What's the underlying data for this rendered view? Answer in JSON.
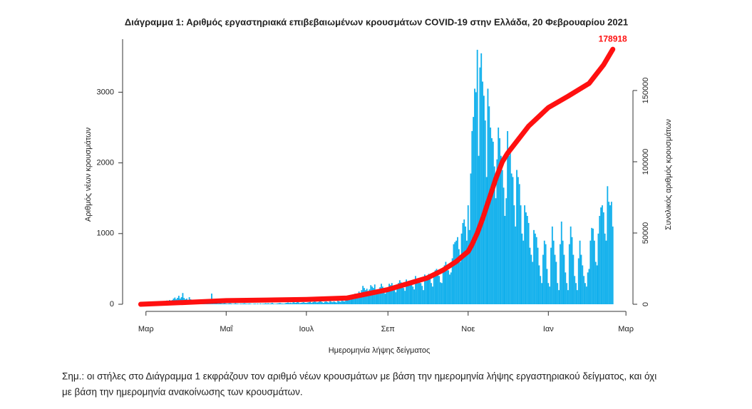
{
  "chart_data": {
    "type": "bar",
    "title": "Διάγραμμα 1: Αριθμός εργαστηριακά επιβεβαιωμένων κρουσμάτων COVID-19 στην Ελλάδα, 20 Φεβρουαρίου 2021",
    "y_label": "Αριθμός νέων κρουσμάτων",
    "y2_label": "Συνολικός αριθμός κρουσμάτων",
    "x_label": "Ημερομηνία λήψης δείγματος",
    "note": [
      "Σημ.: οι στήλες στο Διάγραμμα 1 εκφράζουν τον αριθμό νέων κρουσμάτων με βάση την ημερομηνία λήψης εργαστηριακού δείγματος, και όχι",
      "με βάση την ημερομηνία ανακοίνωσης των κρουσμάτων."
    ],
    "annotation": "178918",
    "xlim": [
      -4,
      370
    ],
    "xticks": [
      {
        "value": 4,
        "label": "Μαρ"
      },
      {
        "value": 65,
        "label": "Μαΐ"
      },
      {
        "value": 126,
        "label": "Ιουλ"
      },
      {
        "value": 188,
        "label": "Σεπ"
      },
      {
        "value": 249,
        "label": "Νοε"
      },
      {
        "value": 310,
        "label": "Ιαν"
      },
      {
        "value": 369,
        "label": "Μαρ"
      }
    ],
    "ylim": [
      0,
      3750
    ],
    "yticks": [
      0,
      1000,
      2000,
      3000
    ],
    "y2lim": [
      0,
      186000
    ],
    "y2ticks": [
      0,
      50000,
      100000,
      150000
    ],
    "series": [
      {
        "type": "bar",
        "color": "#12b0ec",
        "values": [
          1,
          1,
          1,
          3,
          3,
          2,
          0,
          2,
          8,
          10,
          14,
          20,
          7,
          6,
          11,
          20,
          30,
          18,
          40,
          35,
          53,
          46,
          60,
          45,
          60,
          80,
          95,
          70,
          90,
          120,
          80,
          100,
          159,
          90,
          70,
          80,
          60,
          100,
          70,
          60,
          50,
          62,
          55,
          40,
          45,
          35,
          30,
          25,
          40,
          30,
          20,
          25,
          25,
          40,
          151,
          60,
          30,
          20,
          15,
          10,
          20,
          15,
          10,
          12,
          15,
          10,
          8,
          12,
          15,
          10,
          5,
          8,
          15,
          10,
          8,
          5,
          10,
          8,
          12,
          15,
          10,
          8,
          10,
          12,
          6,
          4,
          8,
          10,
          5,
          10,
          3,
          12,
          6,
          8,
          10,
          15,
          10,
          15,
          8,
          12,
          20,
          10,
          6,
          8,
          12,
          15,
          18,
          12,
          10,
          8,
          15,
          20,
          25,
          18,
          22,
          15,
          30,
          25,
          20,
          35,
          28,
          15,
          20,
          25,
          30,
          20,
          20,
          25,
          30,
          35,
          20,
          30,
          40,
          35,
          25,
          30,
          40,
          45,
          30,
          20,
          35,
          40,
          30,
          25,
          45,
          35,
          30,
          40,
          30,
          25,
          50,
          40,
          35,
          50,
          45,
          40,
          60,
          80,
          70,
          60,
          100,
          110,
          120,
          150,
          130,
          120,
          180,
          160,
          200,
          260,
          230,
          200,
          220,
          190,
          210,
          270,
          250,
          230,
          280,
          200,
          180,
          160,
          240,
          290,
          250,
          220,
          150,
          170,
          180,
          290,
          270,
          300,
          250,
          200,
          170,
          280,
          300,
          340,
          310,
          280,
          230,
          190,
          350,
          300,
          330,
          320,
          290,
          250,
          210,
          400,
          350,
          340,
          370,
          300,
          260,
          200,
          420,
          370,
          400,
          430,
          380,
          300,
          250,
          450,
          480,
          500,
          460,
          400,
          310,
          300,
          520,
          550,
          600,
          500,
          480,
          420,
          450,
          650,
          850,
          880,
          900,
          950,
          780,
          600,
          1000,
          1150,
          1200,
          1100,
          900,
          1400,
          1050,
          1850,
          2450,
          2650,
          3050,
          3000,
          3600,
          2100,
          3350,
          3550,
          3150,
          2950,
          2600,
          1800,
          3050,
          2800,
          2500,
          2350,
          2300,
          1950,
          1500,
          2050,
          2500,
          2350,
          2100,
          1900,
          1650,
          1250,
          1500,
          2450,
          2100,
          2200,
          1850,
          1800,
          1400,
          1100,
          1900,
          1800,
          1700,
          1400,
          1000,
          900,
          1400,
          1300,
          1250,
          1150,
          800,
          700,
          600,
          1050,
          1000,
          950,
          800,
          550,
          400,
          300,
          700,
          900,
          850,
          500,
          300,
          250,
          800,
          1100,
          900,
          700,
          600,
          300,
          200,
          850,
          1170,
          900,
          700,
          450,
          300,
          200,
          850,
          1100,
          950,
          700,
          400,
          300,
          200,
          650,
          900,
          700,
          550,
          400,
          300,
          250,
          450,
          500,
          900,
          1080,
          1070,
          900,
          600,
          550,
          1000,
          1250,
          1370,
          1400,
          1300,
          1000,
          900,
          1670,
          1450,
          1400,
          1450,
          1100
        ]
      },
      {
        "type": "line",
        "axis": "y2",
        "color": "#ff1010",
        "x": [
          0,
          35,
          65,
          96,
          126,
          157,
          188,
          218,
          230,
          240,
          245,
          249,
          252,
          256,
          260,
          265,
          270,
          275,
          279,
          295,
          310,
          325,
          341,
          352,
          359
        ],
        "values": [
          3,
          1300,
          2590,
          2920,
          3400,
          4400,
          10300,
          18500,
          24000,
          30000,
          34000,
          37000,
          42000,
          50000,
          60000,
          74000,
          88000,
          100000,
          106000,
          125000,
          138000,
          146000,
          155000,
          168000,
          178918
        ]
      }
    ]
  }
}
